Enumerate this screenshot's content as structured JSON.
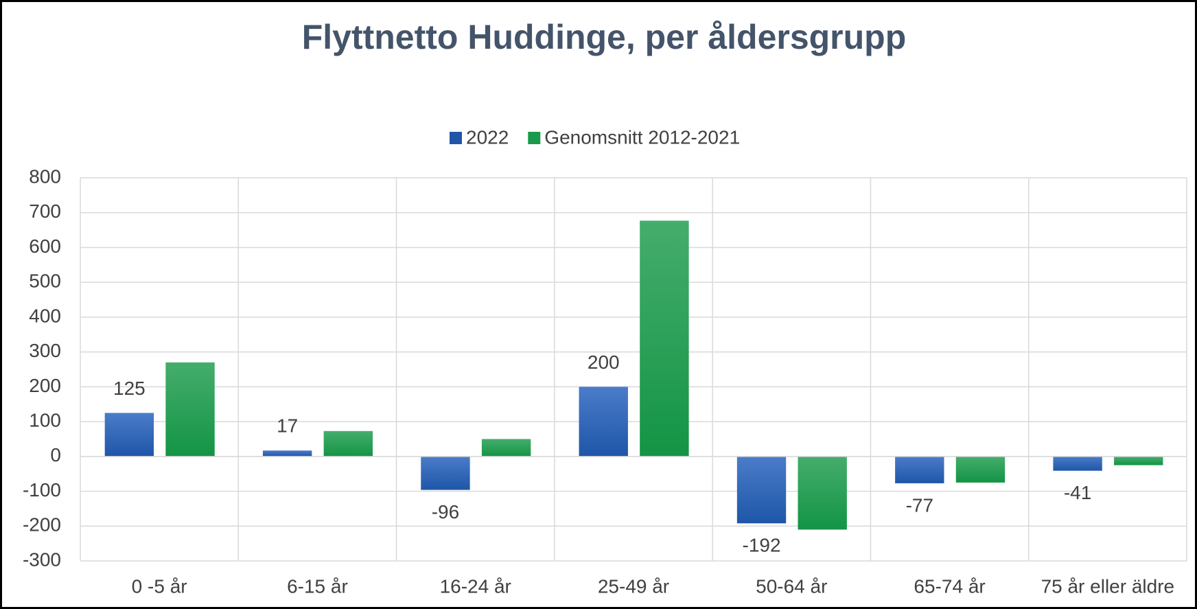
{
  "chart_data": {
    "type": "bar",
    "title": "Flyttnetto Huddinge, per åldersgrupp",
    "categories": [
      "0 -5 år",
      "6-15 år",
      "16-24 år",
      "25-49 år",
      "50-64 år",
      "65-74 år",
      "75 år eller äldre"
    ],
    "series": [
      {
        "name": "2022",
        "color": "#1f56a8",
        "values": [
          125,
          17,
          -96,
          200,
          -192,
          -77,
          -41
        ],
        "data_labels": true
      },
      {
        "name": "Genomsnitt 2012-2021",
        "color": "#1a9a4a",
        "values": [
          270,
          73,
          50,
          677,
          -210,
          -75,
          -25
        ],
        "data_labels": false
      }
    ],
    "ylim": [
      -300,
      800
    ],
    "yticks": [
      -300,
      -200,
      -100,
      0,
      100,
      200,
      300,
      400,
      500,
      600,
      700,
      800
    ],
    "grid": true,
    "legend": "top"
  }
}
